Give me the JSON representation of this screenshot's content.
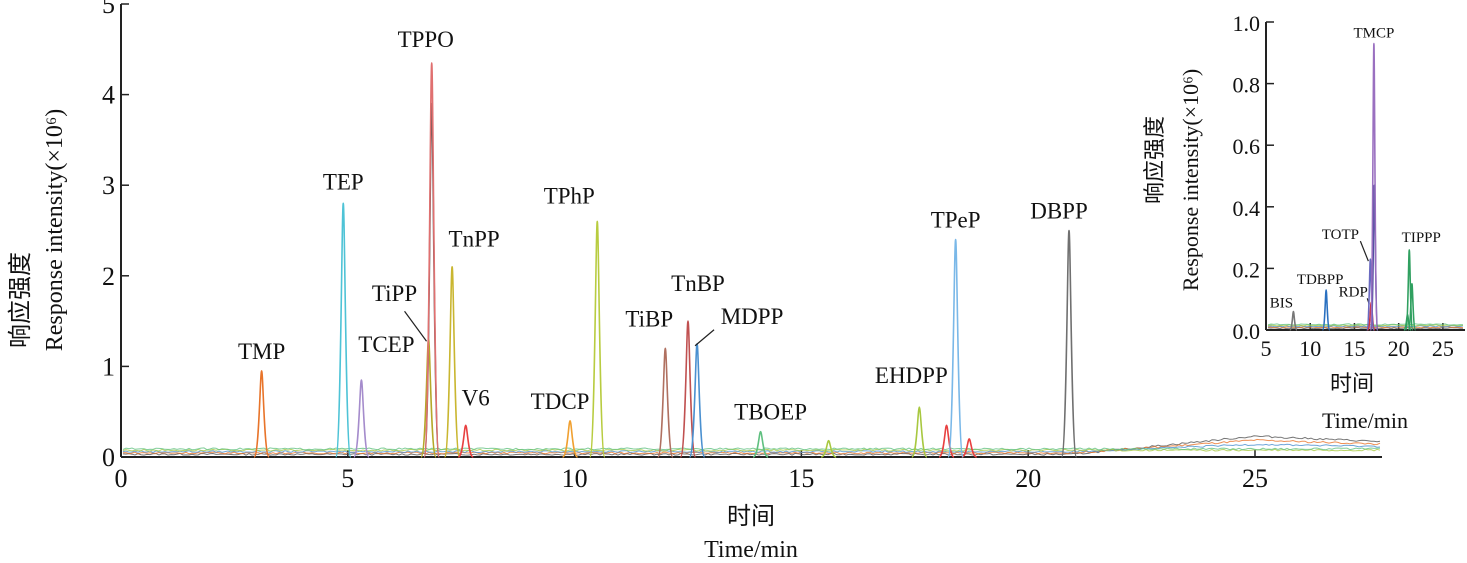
{
  "chart_data": [
    {
      "type": "line",
      "title": "",
      "xlabel_cn": "时间",
      "xlabel": "Time/min",
      "ylabel_cn": "响应强度",
      "ylabel": "Response intensity(×10⁶)",
      "xlim": [
        0,
        27.8
      ],
      "ylim": [
        0,
        5
      ],
      "xticks": [
        "0",
        "5",
        "10",
        "15",
        "20",
        "25"
      ],
      "yticks": [
        "0",
        "1",
        "2",
        "3",
        "4",
        "5"
      ],
      "peaks": [
        {
          "name": "TMP",
          "x": 3.1,
          "y": 0.95,
          "color": "#e8742a"
        },
        {
          "name": "TEP",
          "x": 4.9,
          "y": 2.8,
          "color": "#4ec3d6"
        },
        {
          "name": "TCEP",
          "x": 5.3,
          "y": 0.85,
          "color": "#a58ccc"
        },
        {
          "name": "TiPP",
          "x": 6.78,
          "y": 1.3,
          "color": "#b5a82a"
        },
        {
          "name": "TPPO",
          "x": 6.85,
          "y": 4.35,
          "color": "#e07070"
        },
        {
          "name": "TnPP",
          "x": 7.3,
          "y": 2.1,
          "color": "#c9b630"
        },
        {
          "name": "V6",
          "x": 7.6,
          "y": 0.35,
          "color": "#e84040"
        },
        {
          "name": "TDCP",
          "x": 9.9,
          "y": 0.4,
          "color": "#f0a030"
        },
        {
          "name": "TPhP",
          "x": 10.5,
          "y": 2.6,
          "color": "#b8cc40"
        },
        {
          "name": "TiBP",
          "x": 12.0,
          "y": 1.2,
          "color": "#b07060"
        },
        {
          "name": "TnBP",
          "x": 12.5,
          "y": 1.5,
          "color": "#c05050"
        },
        {
          "name": "MDPP",
          "x": 12.7,
          "y": 1.25,
          "color": "#4a90d0"
        },
        {
          "name": "TBOEP",
          "x": 14.1,
          "y": 0.28,
          "color": "#60c080"
        },
        {
          "name": "EHDPP",
          "x": 17.6,
          "y": 0.55,
          "color": "#a8c840"
        },
        {
          "name": "TPeP",
          "x": 18.4,
          "y": 2.4,
          "color": "#7ab8e8"
        },
        {
          "name": "DBPP",
          "x": 20.9,
          "y": 2.5,
          "color": "#707070"
        }
      ],
      "unlabeled_peaks": [
        {
          "x": 6.85,
          "y": 3.9,
          "color": "#555555"
        },
        {
          "x": 15.6,
          "y": 0.18,
          "color": "#a8c840"
        },
        {
          "x": 18.2,
          "y": 0.35,
          "color": "#e84040"
        },
        {
          "x": 18.7,
          "y": 0.2,
          "color": "#e84040"
        }
      ],
      "baseline_drift": {
        "start": 21,
        "peak_x": 25,
        "peak_y": 0.2,
        "end": 27.8
      }
    },
    {
      "type": "line",
      "title": "",
      "xlabel_cn": "时间",
      "xlabel": "Time/min",
      "ylabel_cn": "响应强度",
      "ylabel": "Response intensity(×10⁶)",
      "xlim": [
        5,
        27.5
      ],
      "ylim": [
        0,
        1.0
      ],
      "xticks": [
        "5",
        "10",
        "15",
        "20",
        "25"
      ],
      "yticks": [
        "0.0",
        "0.2",
        "0.4",
        "0.6",
        "0.8",
        "1.0"
      ],
      "peaks": [
        {
          "name": "BIS",
          "x": 8.1,
          "y": 0.06,
          "color": "#777777"
        },
        {
          "name": "TDBPP",
          "x": 11.8,
          "y": 0.13,
          "color": "#2a70c0"
        },
        {
          "name": "RDP",
          "x": 16.9,
          "y": 0.09,
          "color": "#d03040"
        },
        {
          "name": "TOTP",
          "x": 16.8,
          "y": 0.23,
          "color": "#6a6ac0"
        },
        {
          "name": "TMCP",
          "x": 17.2,
          "y": 0.93,
          "color": "#9a70c0"
        },
        {
          "name": "TIPPP",
          "x": 21.2,
          "y": 0.26,
          "color": "#30a060"
        }
      ],
      "unlabeled_peaks": [
        {
          "x": 17.25,
          "y": 0.47,
          "color": "#5050a0"
        },
        {
          "x": 21.5,
          "y": 0.15,
          "color": "#30a060"
        },
        {
          "x": 21.0,
          "y": 0.05,
          "color": "#30a060"
        }
      ]
    }
  ]
}
